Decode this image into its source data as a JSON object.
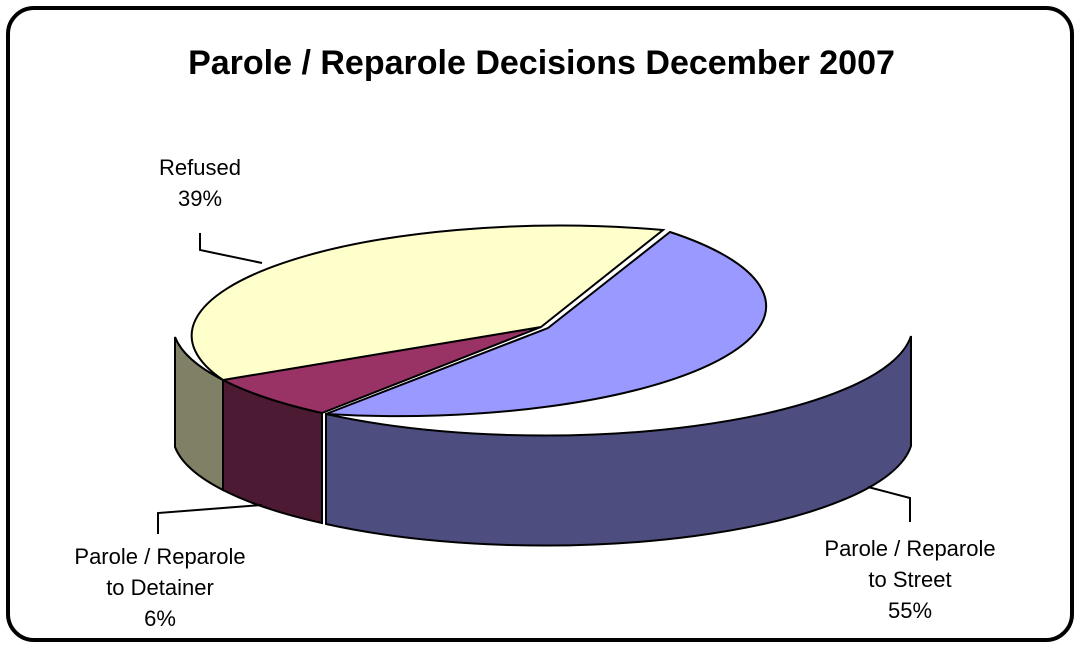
{
  "chart_data": {
    "type": "pie",
    "title": "Parole / Reparole Decisions December 2007",
    "slices": [
      {
        "label_lines": [
          "Parole / Reparole",
          "to Street"
        ],
        "pct_label": "55%",
        "value": 55,
        "color": "#9999ff"
      },
      {
        "label_lines": [
          "Parole / Reparole",
          "to Detainer"
        ],
        "pct_label": "6%",
        "value": 6,
        "color": "#993366"
      },
      {
        "label_lines": [
          "Refused"
        ],
        "pct_label": "39%",
        "value": 39,
        "color": "#ffffcc"
      }
    ],
    "three_d": true,
    "data_labels": "label and percentage"
  }
}
